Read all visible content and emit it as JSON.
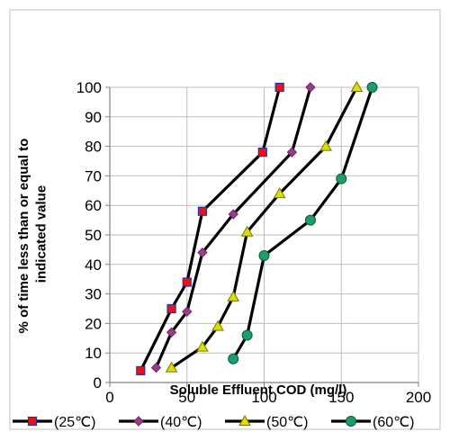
{
  "chart_data": {
    "type": "line",
    "xlabel": "Soluble Effluent COD (mg/l)",
    "ylabel": "% of time less than or equal to indicated value",
    "xlim": [
      0,
      200
    ],
    "ylim": [
      0,
      100
    ],
    "x_ticks": [
      "0",
      "50",
      "100",
      "150",
      "200"
    ],
    "y_ticks": [
      "0",
      "10",
      "20",
      "30",
      "40",
      "50",
      "60",
      "70",
      "80",
      "90",
      "100"
    ],
    "grid": true,
    "legend_position": "bottom",
    "series": [
      {
        "name": "(25℃)",
        "marker": "square",
        "marker_color": "#ee1111",
        "marker_border": "#2233aa",
        "points": [
          [
            20,
            4
          ],
          [
            40,
            25
          ],
          [
            50,
            34
          ],
          [
            60,
            58
          ],
          [
            99,
            78
          ],
          [
            110,
            100
          ]
        ]
      },
      {
        "name": "(40℃)",
        "marker": "diamond",
        "marker_color": "#9b3b8a",
        "marker_border": "#6a2a60",
        "points": [
          [
            30,
            5
          ],
          [
            40,
            17
          ],
          [
            50,
            24
          ],
          [
            60,
            44
          ],
          [
            80,
            57
          ],
          [
            118,
            78
          ],
          [
            130,
            100
          ]
        ]
      },
      {
        "name": "(50℃)",
        "marker": "triangle",
        "marker_color": "#dddd00",
        "marker_border": "#777700",
        "points": [
          [
            40,
            5
          ],
          [
            60,
            12
          ],
          [
            70,
            19
          ],
          [
            80,
            29
          ],
          [
            89,
            51
          ],
          [
            110,
            64
          ],
          [
            140,
            80
          ],
          [
            160,
            100
          ]
        ]
      },
      {
        "name": "(60℃)",
        "marker": "circle",
        "marker_color": "#1a9e6a",
        "marker_border": "#0e5a3c",
        "points": [
          [
            80,
            8
          ],
          [
            89,
            16
          ],
          [
            100,
            43
          ],
          [
            130,
            55
          ],
          [
            150,
            69
          ],
          [
            170,
            100
          ]
        ]
      }
    ]
  }
}
